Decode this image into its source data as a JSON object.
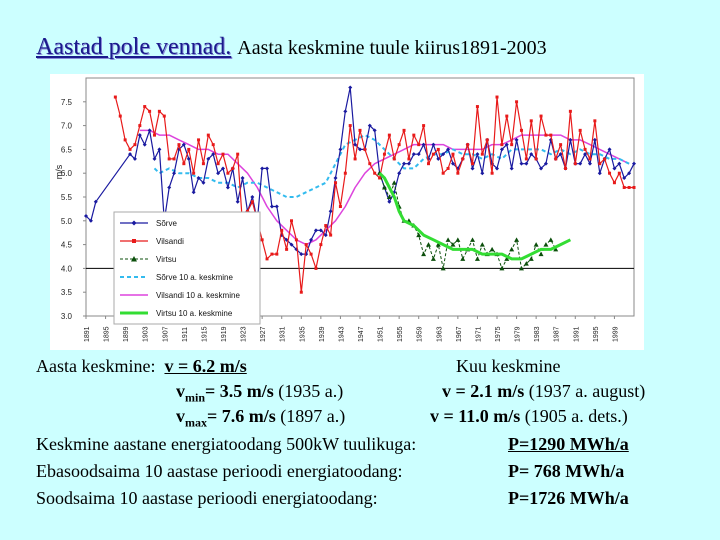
{
  "title": {
    "main": "Aastad pole vennad.",
    "sub": "Aasta keskmine tuule kiirus1891-2003"
  },
  "stats": {
    "avg_label": "Aasta keskmine:",
    "avg_value": "v = 6.2 m/s",
    "monthly_header": "Kuu keskmine",
    "vmin_sym": "v",
    "vmin_sub": "min",
    "vmin_val": "= 3.5 m/s",
    "vmin_year": " (1935 a.)",
    "vmax_sym": "v",
    "vmax_sub": "max",
    "vmax_val": "= 7.6 m/s",
    "vmax_year": " (1897 a.)",
    "mmin_val": "v = 2.1 m/s",
    "mmin_date": " (1937 a. august)",
    "mmax_val": "v = 11.0 m/s",
    "mmax_date": " (1905 a. dets.)"
  },
  "energy": {
    "avg_label": "Keskmine aastane energiatoodang 500kW tuulikuga:",
    "avg_value": "P=1290 MWh/a",
    "worst_label": "Ebasoodsaima 10 aastase perioodi energiatoodang:",
    "worst_value": "P= 768 MWh/a",
    "best_label": "Soodsaima 10 aastase perioodi energiatoodang:",
    "best_value": "P=1726 MWh/a"
  },
  "chart_data": {
    "type": "line",
    "ylabel": "m/s",
    "ylim": [
      3.0,
      8.0
    ],
    "yticks": [
      "3.0",
      "3.5",
      "4.0",
      "4.5",
      "5.0",
      "5.5",
      "6.0",
      "6.5",
      "7.0",
      "7.5"
    ],
    "xlim": [
      1891,
      2003
    ],
    "xticks": [
      "1891",
      "1895",
      "1899",
      "1903",
      "1907",
      "1911",
      "1915",
      "1919",
      "1923",
      "1927",
      "1931",
      "1935",
      "1939",
      "1943",
      "1947",
      "1951",
      "1955",
      "1959",
      "1963",
      "1967",
      "1971",
      "1975",
      "1979",
      "1983",
      "1987",
      "1991",
      "1995",
      "1999"
    ],
    "reference_line": 4.0,
    "colors": {
      "sorve": "#1a1aa0",
      "vilsandi": "#e81a1a",
      "virtsu": "#0b4f0b",
      "sorve_avg": "#33bbee",
      "vilsandi_avg": "#dd44dd",
      "virtsu_avg": "#33dd33"
    },
    "series": [
      {
        "name": "Sõrve",
        "key": "sorve",
        "style": "line-diamond",
        "x": [
          1891,
          1892,
          1893,
          1900,
          1901,
          1902,
          1903,
          1904,
          1905,
          1906,
          1907,
          1908,
          1909,
          1910,
          1911,
          1912,
          1913,
          1914,
          1915,
          1916,
          1917,
          1918,
          1919,
          1920,
          1921,
          1922,
          1923,
          1924,
          1925,
          1926,
          1927,
          1928,
          1929,
          1930,
          1931,
          1932,
          1933,
          1934,
          1935,
          1936,
          1937,
          1938,
          1939,
          1940,
          1941,
          1942,
          1943,
          1944,
          1945,
          1946,
          1947,
          1948,
          1949,
          1950,
          1951,
          1952,
          1953,
          1954,
          1955,
          1956,
          1957,
          1958,
          1959,
          1960,
          1961,
          1962,
          1963,
          1964,
          1965,
          1966,
          1967,
          1968,
          1969,
          1970,
          1971,
          1972,
          1973,
          1974,
          1975,
          1976,
          1977,
          1978,
          1979,
          1980,
          1981,
          1982,
          1983,
          1984,
          1985,
          1986,
          1987,
          1988,
          1989,
          1990,
          1991,
          1992,
          1993,
          1994,
          1995,
          1996,
          1997,
          1998,
          1999,
          2000,
          2001,
          2002,
          2003
        ],
        "values": [
          5.1,
          5.0,
          5.4,
          6.4,
          6.3,
          6.8,
          6.6,
          6.9,
          6.3,
          6.5,
          5.0,
          5.7,
          6.0,
          6.5,
          6.6,
          6.3,
          5.6,
          5.9,
          5.8,
          6.3,
          6.4,
          6.0,
          6.1,
          5.7,
          6.1,
          5.4,
          5.9,
          5.2,
          5.5,
          5.0,
          6.1,
          6.1,
          5.3,
          5.3,
          4.7,
          4.6,
          4.5,
          4.4,
          4.3,
          4.3,
          4.6,
          4.8,
          4.8,
          4.7,
          5.2,
          5.9,
          6.5,
          7.3,
          7.8,
          6.6,
          6.5,
          6.5,
          7.0,
          6.9,
          6.0,
          5.7,
          5.4,
          5.6,
          6.0,
          6.2,
          6.2,
          6.4,
          6.4,
          6.6,
          6.3,
          6.6,
          6.3,
          6.4,
          6.5,
          6.2,
          6.1,
          6.3,
          6.6,
          6.1,
          6.4,
          6.0,
          6.7,
          6.2,
          6.1,
          6.5,
          6.6,
          6.1,
          6.7,
          6.2,
          6.2,
          6.4,
          6.3,
          6.1,
          6.2,
          6.7,
          6.3,
          6.4,
          6.1,
          6.7,
          6.2,
          6.2,
          6.4,
          6.2,
          6.7,
          6.0,
          6.3,
          6.5,
          6.1,
          6.2,
          5.9,
          6.0,
          6.2
        ]
      },
      {
        "name": "Vilsandi",
        "key": "vilsandi",
        "style": "line-square",
        "x": [
          1897,
          1898,
          1899,
          1900,
          1901,
          1902,
          1903,
          1904,
          1905,
          1906,
          1907,
          1908,
          1909,
          1910,
          1911,
          1912,
          1913,
          1914,
          1915,
          1916,
          1917,
          1918,
          1919,
          1920,
          1921,
          1922,
          1923,
          1924,
          1925,
          1926,
          1927,
          1928,
          1929,
          1930,
          1931,
          1932,
          1933,
          1934,
          1935,
          1936,
          1937,
          1938,
          1939,
          1940,
          1941,
          1942,
          1943,
          1944,
          1945,
          1946,
          1947,
          1948,
          1949,
          1950,
          1951,
          1952,
          1953,
          1954,
          1955,
          1956,
          1957,
          1958,
          1959,
          1960,
          1961,
          1962,
          1963,
          1964,
          1965,
          1966,
          1967,
          1968,
          1969,
          1970,
          1971,
          1972,
          1973,
          1974,
          1975,
          1976,
          1977,
          1978,
          1979,
          1980,
          1981,
          1982,
          1983,
          1984,
          1985,
          1986,
          1987,
          1988,
          1989,
          1990,
          1991,
          1992,
          1993,
          1994,
          1995,
          1996,
          1997,
          1998,
          1999,
          2000,
          2001,
          2002,
          2003
        ],
        "values": [
          7.6,
          7.2,
          6.7,
          6.5,
          6.6,
          7.0,
          7.4,
          7.3,
          6.8,
          7.3,
          7.2,
          6.3,
          6.3,
          6.6,
          6.2,
          6.5,
          6.0,
          6.7,
          6.2,
          6.8,
          6.6,
          6.2,
          6.4,
          6.0,
          6.1,
          6.4,
          4.9,
          5.2,
          5.4,
          5.0,
          4.6,
          4.2,
          4.3,
          4.3,
          4.8,
          4.4,
          5.0,
          4.6,
          3.5,
          4.5,
          4.3,
          4.0,
          4.5,
          4.9,
          4.7,
          5.8,
          5.3,
          6.0,
          7.0,
          6.3,
          6.9,
          6.5,
          6.2,
          6.0,
          5.9,
          6.4,
          6.8,
          6.3,
          6.6,
          6.9,
          6.3,
          6.8,
          6.6,
          7.0,
          6.2,
          6.4,
          6.5,
          6.0,
          6.1,
          6.4,
          6.0,
          6.3,
          6.6,
          6.2,
          7.4,
          6.4,
          6.7,
          6.0,
          7.6,
          6.6,
          7.2,
          6.6,
          7.5,
          6.9,
          6.3,
          7.1,
          6.3,
          7.2,
          6.8,
          6.8,
          6.3,
          6.6,
          6.1,
          7.3,
          6.2,
          6.9,
          6.5,
          6.3,
          7.1,
          6.2,
          6.3,
          6.0,
          5.8,
          6.0,
          5.7,
          5.7,
          5.7
        ]
      },
      {
        "name": "Virtsu",
        "key": "virtsu",
        "style": "dash-triangle",
        "x": [
          1951,
          1952,
          1953,
          1954,
          1955,
          1956,
          1957,
          1958,
          1959,
          1960,
          1961,
          1962,
          1963,
          1964,
          1965,
          1966,
          1967,
          1968,
          1969,
          1970,
          1971,
          1972,
          1973,
          1974,
          1975,
          1976,
          1977,
          1978,
          1979,
          1980,
          1981,
          1982,
          1983,
          1984,
          1985,
          1986,
          1987
        ],
        "values": [
          6.0,
          5.7,
          5.5,
          5.8,
          5.3,
          5.0,
          5.0,
          4.9,
          4.7,
          4.3,
          4.5,
          4.2,
          4.5,
          4.0,
          4.6,
          4.5,
          4.6,
          4.2,
          4.4,
          4.6,
          4.2,
          4.5,
          4.3,
          4.4,
          4.3,
          4.0,
          4.2,
          4.4,
          4.6,
          4.0,
          4.1,
          4.2,
          4.5,
          4.3,
          4.5,
          4.6,
          4.4
        ]
      },
      {
        "name": "Sõrve 10 a. keskmine",
        "key": "sorve_avg",
        "style": "dotted",
        "x": [
          1905,
          1906,
          1908,
          1910,
          1912,
          1914,
          1916,
          1918,
          1920,
          1922,
          1924,
          1926,
          1928,
          1930,
          1932,
          1934,
          1936,
          1938,
          1940,
          1942,
          1944,
          1946,
          1948,
          1950,
          1952,
          1954,
          1956,
          1958,
          1960,
          1962,
          1964,
          1966,
          1968,
          1970,
          1972,
          1974,
          1976,
          1978,
          1980,
          1982,
          1984,
          1986,
          1988,
          1990,
          1992,
          1994,
          1996,
          1998,
          2000,
          2002
        ],
        "values": [
          6.1,
          6.0,
          6.1,
          6.0,
          6.0,
          5.9,
          5.9,
          5.8,
          5.8,
          5.7,
          5.8,
          5.8,
          5.7,
          5.6,
          5.5,
          5.5,
          5.6,
          5.7,
          5.8,
          6.2,
          6.6,
          6.7,
          6.8,
          6.7,
          6.5,
          6.3,
          6.1,
          6.1,
          6.3,
          6.4,
          6.4,
          6.5,
          6.4,
          6.4,
          6.3,
          6.4,
          6.3,
          6.5,
          6.5,
          6.5,
          6.5,
          6.4,
          6.5,
          6.4,
          6.5,
          6.4,
          6.4,
          6.3,
          6.3,
          6.2
        ]
      },
      {
        "name": "Vilsandi 10 a. keskmine",
        "key": "vilsandi_avg",
        "style": "line",
        "x": [
          1902,
          1904,
          1906,
          1908,
          1910,
          1912,
          1914,
          1916,
          1918,
          1920,
          1922,
          1924,
          1926,
          1928,
          1930,
          1932,
          1934,
          1936,
          1938,
          1940,
          1942,
          1944,
          1946,
          1948,
          1950,
          1952,
          1954,
          1956,
          1958,
          1960,
          1962,
          1964,
          1966,
          1968,
          1970,
          1972,
          1974,
          1976,
          1978,
          1980,
          1982,
          1984,
          1986,
          1988,
          1990,
          1992,
          1994,
          1996,
          1998,
          2000,
          2002
        ],
        "values": [
          6.9,
          6.9,
          6.8,
          6.8,
          6.7,
          6.6,
          6.5,
          6.5,
          6.4,
          6.4,
          6.2,
          6.0,
          5.7,
          5.3,
          5.0,
          4.8,
          4.6,
          4.5,
          4.6,
          4.8,
          5.0,
          5.3,
          5.7,
          6.0,
          6.2,
          6.3,
          6.4,
          6.5,
          6.6,
          6.6,
          6.6,
          6.6,
          6.5,
          6.5,
          6.5,
          6.5,
          6.6,
          6.6,
          6.7,
          6.8,
          6.8,
          6.8,
          6.8,
          6.8,
          6.7,
          6.7,
          6.6,
          6.5,
          6.4,
          6.3,
          6.2
        ]
      },
      {
        "name": "Virtsu 10 a. keskmine",
        "key": "virtsu_avg",
        "style": "thick",
        "x": [
          1951,
          1952,
          1953,
          1954,
          1955,
          1956,
          1958,
          1960,
          1962,
          1964,
          1966,
          1968,
          1970,
          1972,
          1974,
          1976,
          1978,
          1980,
          1982,
          1984,
          1986,
          1988,
          1990
        ],
        "values": [
          6.0,
          5.9,
          5.7,
          5.5,
          5.2,
          5.0,
          4.9,
          4.7,
          4.6,
          4.5,
          4.4,
          4.4,
          4.4,
          4.3,
          4.3,
          4.3,
          4.2,
          4.2,
          4.3,
          4.4,
          4.4,
          4.5,
          4.6
        ]
      }
    ]
  }
}
